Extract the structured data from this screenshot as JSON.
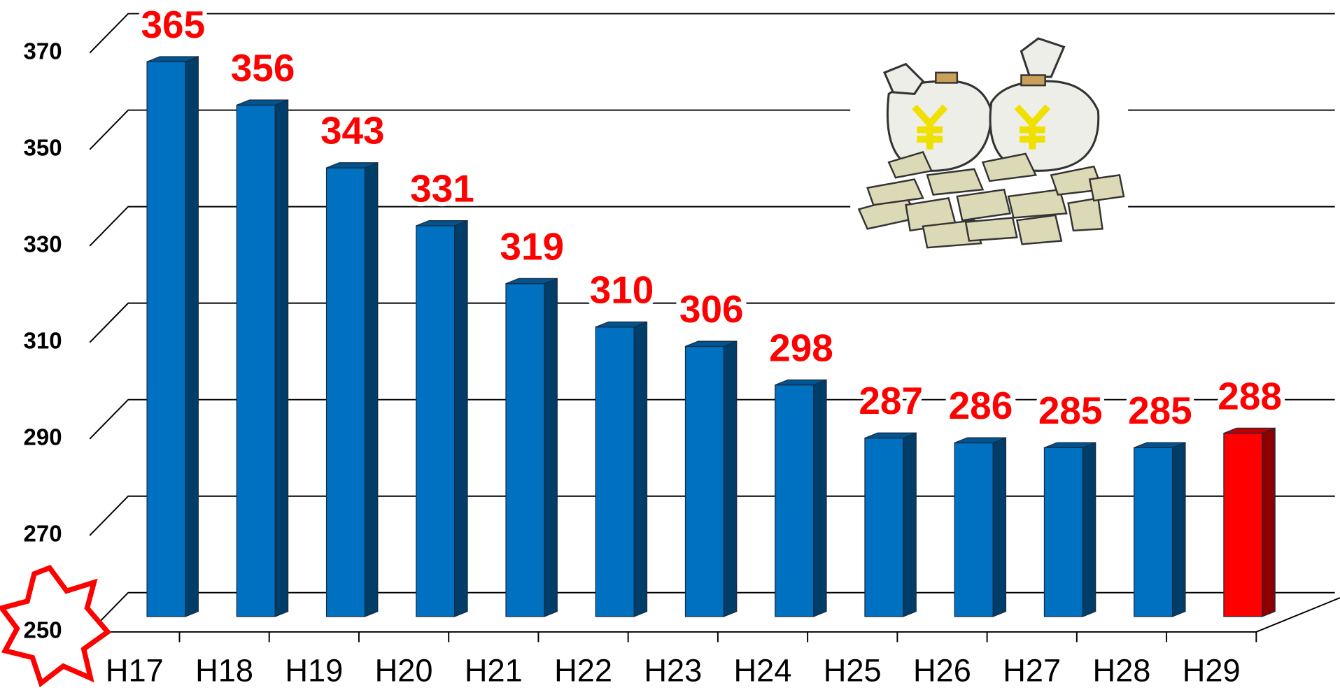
{
  "chart_data": {
    "type": "bar3d",
    "categories": [
      "H17",
      "H18",
      "H19",
      "H20",
      "H21",
      "H22",
      "H23",
      "H24",
      "H25",
      "H26",
      "H27",
      "H28",
      "H29"
    ],
    "values": [
      365,
      356,
      343,
      331,
      319,
      310,
      306,
      298,
      287,
      286,
      285,
      285,
      288
    ],
    "colors": [
      "#0070c0",
      "#0070c0",
      "#0070c0",
      "#0070c0",
      "#0070c0",
      "#0070c0",
      "#0070c0",
      "#0070c0",
      "#0070c0",
      "#0070c0",
      "#0070c0",
      "#0070c0",
      "#ff0000"
    ],
    "ylim": [
      250,
      370
    ],
    "yticks": [
      250,
      270,
      290,
      310,
      330,
      350,
      370
    ],
    "grid": true
  }
}
